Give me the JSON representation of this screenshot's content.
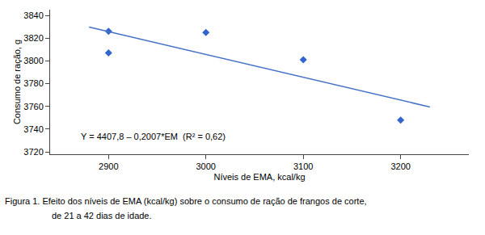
{
  "chart_data": {
    "type": "scatter",
    "xlabel": "Níveis de EMA, kcal/kg",
    "ylabel": "Consumo de ração, g",
    "caption": [
      "Figura 1. Efeito dos níveis de EMA (kcal/kg) sobre o consumo de ração de frangos de corte,",
      "de 21 a 42 dias de idade."
    ],
    "annotations": [
      {
        "text": "Y = 4407,8 – 0,2007*EM  (R² = 0,62)",
        "x": 2870,
        "y": 3728
      }
    ],
    "series": [
      {
        "type": "scatter",
        "marker": "diamond",
        "color": "#3366CC",
        "x": [
          2900,
          2900,
          3000,
          3100,
          3200
        ],
        "values": [
          3807,
          3826,
          3825,
          3801,
          3748
        ]
      },
      {
        "type": "line",
        "line_style": "solid",
        "color": "#4472C4",
        "x": [
          2880,
          3230
        ],
        "values": [
          3829.784,
          3759.539
        ]
      }
    ],
    "xlim": [
      2840,
      3270
    ],
    "ylim": [
      3718,
      3845
    ],
    "xticks": [
      2900,
      3000,
      3100,
      3200
    ],
    "yticks": [
      3720,
      3740,
      3760,
      3780,
      3800,
      3820,
      3840
    ],
    "grid": false
  }
}
